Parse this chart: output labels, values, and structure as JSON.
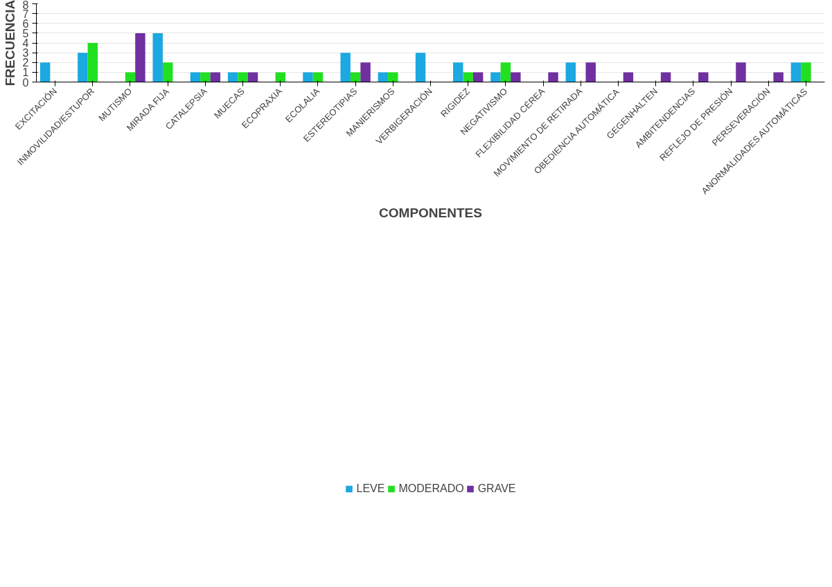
{
  "chart_data": {
    "type": "bar",
    "xlabel": "COMPONENTES",
    "ylabel": "FRECUENCIA",
    "categories": [
      "EXCITACIÓN",
      "INMOVILIDAD/ESTUPOR",
      "MUTISMO",
      "MIRADA FIJA",
      "CATALEPSIA",
      "MUECAS",
      "ECOPRAXIA",
      "ECOLALIA",
      "ESTEREOTIPIAS",
      "MANIERISMOS",
      "VERBIGERACIÓN",
      "RIGIDEZ",
      "NEGATIVISMO",
      "FLEXIBILIDAD CÉREA",
      "MOVIMIENTO DE RETIRADA",
      "OBEDIENCIA AUTOMÁTICA",
      "GEGENHALTEN",
      "AMBITENDENCIAS",
      "REFLEJO DE PRESIÓN",
      "PERSEVERACIÓN",
      "ANORMALIDADES AUTOMÁTICAS"
    ],
    "series": [
      {
        "name": "LEVE",
        "color": "#1ca8e0",
        "values": [
          2,
          3,
          0,
          5,
          1,
          1,
          0,
          1,
          3,
          1,
          3,
          2,
          1,
          0,
          2,
          0,
          0,
          0,
          0,
          0,
          2
        ]
      },
      {
        "name": "MODERADO",
        "color": "#20e020",
        "values": [
          0,
          4,
          1,
          2,
          1,
          1,
          1,
          1,
          1,
          1,
          0,
          1,
          2,
          0,
          0,
          0,
          0,
          0,
          0,
          0,
          2
        ]
      },
      {
        "name": "GRAVE",
        "color": "#7030a0",
        "values": [
          0,
          0,
          5,
          0,
          1,
          1,
          0,
          0,
          2,
          0,
          0,
          1,
          1,
          1,
          2,
          1,
          1,
          1,
          2,
          1,
          0
        ]
      }
    ],
    "ylim": [
      0,
      8
    ],
    "yticks": [
      0,
      1,
      2,
      3,
      4,
      5,
      6,
      7,
      8
    ],
    "grid": "y",
    "legend": "bottom"
  }
}
